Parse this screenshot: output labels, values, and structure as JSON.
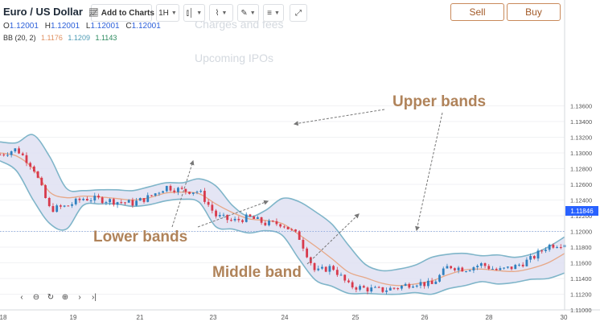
{
  "header": {
    "title": "Euro / US Dollar",
    "add_to_charts": "Add to Charts",
    "interval": "1H",
    "sell": "Sell",
    "buy": "Buy"
  },
  "ohlc": {
    "o_label": "O",
    "o": "1.12001",
    "h_label": "H",
    "h": "1.12001",
    "l_label": "L",
    "l": "1.12001",
    "c_label": "C",
    "c": "1.12001"
  },
  "indicator": {
    "label": "BB (20, 2)",
    "middle": "1.1176",
    "upper": "1.1209",
    "lower": "1.1143"
  },
  "ghost_menu": [
    "Charges and fees",
    "Upcoming IPOs"
  ],
  "annotations": {
    "upper": "Upper bands",
    "lower": "Lower bands",
    "middle": "Middle band"
  },
  "current_price": "1.11846",
  "colors": {
    "band_fill": "#dfe0f2",
    "band_line": "#7fb5c9",
    "middle_line": "#e7a888",
    "candle_up": "#2f80bf",
    "candle_down": "#d83a4c",
    "annotation": "#b0835a",
    "price_tag": "#2962ff"
  },
  "chart_data": {
    "type": "line",
    "ylim": [
      1.11,
      1.137
    ],
    "y_ticks": [
      "1.13600",
      "1.13400",
      "1.13200",
      "1.13000",
      "1.12800",
      "1.12600",
      "1.12400",
      "1.12200",
      "1.12000",
      "1.11800",
      "1.11600",
      "1.11400",
      "1.11200",
      "1.11000"
    ],
    "x_ticks": [
      "18",
      "19",
      "21",
      "23",
      "24",
      "25",
      "26",
      "28",
      "30"
    ],
    "reference_line": 1.12001,
    "series": [
      {
        "key": "upper",
        "x": [
          0,
          3,
          6,
          9,
          12,
          15,
          18,
          21,
          24,
          27,
          30,
          33,
          36,
          39,
          42,
          45,
          48,
          51,
          54,
          57,
          60,
          63,
          66,
          69,
          72,
          75,
          78,
          81,
          84,
          87,
          90,
          93,
          96,
          99,
          102
        ],
        "values": [
          1.1314,
          1.1313,
          1.1323,
          1.1295,
          1.1255,
          1.1252,
          1.1253,
          1.1253,
          1.1252,
          1.1257,
          1.1262,
          1.1262,
          1.1267,
          1.1258,
          1.1233,
          1.1219,
          1.1227,
          1.1242,
          1.1238,
          1.1225,
          1.1209,
          1.1182,
          1.1158,
          1.115,
          1.1152,
          1.1157,
          1.1167,
          1.1171,
          1.1172,
          1.1169,
          1.117,
          1.1167,
          1.1171,
          1.118,
          1.1193
        ]
      },
      {
        "key": "middle",
        "x": [
          0,
          3,
          6,
          9,
          12,
          15,
          18,
          21,
          24,
          27,
          30,
          33,
          36,
          39,
          42,
          45,
          48,
          51,
          54,
          57,
          60,
          63,
          66,
          69,
          72,
          75,
          78,
          81,
          84,
          87,
          90,
          93,
          96,
          99,
          102
        ],
        "values": [
          1.13,
          1.1296,
          1.128,
          1.125,
          1.1243,
          1.1245,
          1.1244,
          1.1242,
          1.124,
          1.1243,
          1.1249,
          1.125,
          1.1248,
          1.1235,
          1.1224,
          1.1216,
          1.1214,
          1.121,
          1.1196,
          1.1181,
          1.1165,
          1.1148,
          1.1141,
          1.1134,
          1.1131,
          1.1133,
          1.1137,
          1.1145,
          1.1151,
          1.1152,
          1.115,
          1.1149,
          1.1153,
          1.116,
          1.1172
        ]
      },
      {
        "key": "lower",
        "x": [
          0,
          3,
          6,
          9,
          12,
          15,
          18,
          21,
          24,
          27,
          30,
          33,
          36,
          39,
          42,
          45,
          48,
          51,
          54,
          57,
          60,
          63,
          66,
          69,
          72,
          75,
          78,
          81,
          84,
          87,
          90,
          93,
          96,
          99,
          102
        ],
        "values": [
          1.129,
          1.1277,
          1.124,
          1.121,
          1.1203,
          1.1233,
          1.1235,
          1.1235,
          1.1232,
          1.1234,
          1.1239,
          1.1241,
          1.1237,
          1.1206,
          1.1203,
          1.1198,
          1.1201,
          1.1195,
          1.1165,
          1.1138,
          1.113,
          1.1121,
          1.1121,
          1.112,
          1.112,
          1.1122,
          1.112,
          1.1127,
          1.1131,
          1.1136,
          1.1133,
          1.1135,
          1.1139,
          1.114,
          1.1147
        ]
      },
      {
        "key": "price",
        "x": [
          0,
          3,
          6,
          9,
          12,
          15,
          18,
          21,
          24,
          27,
          30,
          33,
          36,
          39,
          42,
          45,
          48,
          51,
          54,
          57,
          60,
          63,
          66,
          69,
          72,
          75,
          78,
          81,
          84,
          87,
          90,
          93,
          96,
          99,
          102
        ],
        "values": [
          1.1298,
          1.1305,
          1.1282,
          1.1228,
          1.1232,
          1.1242,
          1.1241,
          1.1238,
          1.1236,
          1.1244,
          1.1257,
          1.1252,
          1.1251,
          1.122,
          1.1213,
          1.1218,
          1.121,
          1.121,
          1.1193,
          1.1148,
          1.1155,
          1.1131,
          1.1127,
          1.1125,
          1.1129,
          1.1135,
          1.1132,
          1.1156,
          1.1152,
          1.1158,
          1.115,
          1.1155,
          1.1165,
          1.1182,
          1.1185
        ]
      }
    ]
  }
}
